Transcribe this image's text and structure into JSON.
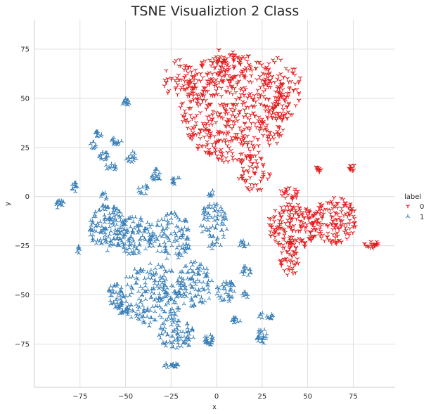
{
  "chart_data": {
    "type": "scatter",
    "title": "TSNE Visualiztion 2 Class",
    "xlabel": "x",
    "ylabel": "y",
    "xlim": [
      -100,
      98
    ],
    "ylim": [
      -97,
      90
    ],
    "xticks": [
      -75,
      -50,
      -25,
      0,
      25,
      50,
      75
    ],
    "yticks": [
      -75,
      -50,
      -25,
      0,
      25,
      50,
      75
    ],
    "xtick_labels": [
      "−75",
      "−50",
      "−25",
      "0",
      "25",
      "50",
      "75"
    ],
    "ytick_labels": [
      "−75",
      "−50",
      "−25",
      "0",
      "25",
      "50",
      "75"
    ],
    "grid": true,
    "legend": {
      "title": "label",
      "placement": "right",
      "entries": [
        "0",
        "1"
      ]
    },
    "series": [
      {
        "name": "0",
        "color": "#e41a1c",
        "marker": "tri_down",
        "clusters": [
          {
            "cx": 10,
            "cy": 45,
            "rx": 30,
            "ry": 28,
            "n": 560
          },
          {
            "cx": -20,
            "cy": 60,
            "rx": 10,
            "ry": 10,
            "n": 60
          },
          {
            "cx": 35,
            "cy": 55,
            "rx": 12,
            "ry": 16,
            "n": 90
          },
          {
            "cx": 20,
            "cy": 12,
            "rx": 10,
            "ry": 10,
            "n": 60
          },
          {
            "cx": 3,
            "cy": 65,
            "rx": 12,
            "ry": 10,
            "n": 60
          },
          {
            "cx": 42,
            "cy": -15,
            "rx": 14,
            "ry": 12,
            "n": 180
          },
          {
            "cx": 65,
            "cy": -12,
            "rx": 12,
            "ry": 12,
            "n": 150
          },
          {
            "cx": 40,
            "cy": -32,
            "rx": 5,
            "ry": 9,
            "n": 50
          },
          {
            "cx": 85,
            "cy": -24,
            "rx": 4,
            "ry": 2.5,
            "n": 25
          },
          {
            "cx": 56,
            "cy": 14,
            "rx": 2,
            "ry": 2,
            "n": 12
          },
          {
            "cx": 74,
            "cy": 15,
            "rx": 2,
            "ry": 2,
            "n": 12
          },
          {
            "cx": 40,
            "cy": 2,
            "rx": 5,
            "ry": 4,
            "n": 25
          }
        ]
      },
      {
        "name": "1",
        "color": "#377eb8",
        "marker": "tri_up",
        "clusters": [
          {
            "cx": -50,
            "cy": 48,
            "rx": 2,
            "ry": 2,
            "n": 15
          },
          {
            "cx": -65,
            "cy": 32,
            "rx": 2,
            "ry": 2,
            "n": 12
          },
          {
            "cx": -68,
            "cy": 26,
            "rx": 2,
            "ry": 2,
            "n": 8
          },
          {
            "cx": -55,
            "cy": 28,
            "rx": 4,
            "ry": 2,
            "n": 15
          },
          {
            "cx": -62,
            "cy": 20,
            "rx": 3,
            "ry": 3,
            "n": 15
          },
          {
            "cx": -58,
            "cy": 15,
            "rx": 3,
            "ry": 2,
            "n": 12
          },
          {
            "cx": -47,
            "cy": 20,
            "rx": 3,
            "ry": 3,
            "n": 15
          },
          {
            "cx": -33,
            "cy": 11,
            "rx": 3,
            "ry": 3,
            "n": 20
          },
          {
            "cx": -22,
            "cy": 8,
            "rx": 3,
            "ry": 2,
            "n": 12
          },
          {
            "cx": -78,
            "cy": 5,
            "rx": 2,
            "ry": 3,
            "n": 12
          },
          {
            "cx": -86,
            "cy": -4,
            "rx": 2.5,
            "ry": 3,
            "n": 15
          },
          {
            "cx": -40,
            "cy": 4,
            "rx": 3,
            "ry": 3,
            "n": 12
          },
          {
            "cx": -62,
            "cy": 0,
            "rx": 2,
            "ry": 2,
            "n": 8
          },
          {
            "cx": -60,
            "cy": -16,
            "rx": 10,
            "ry": 12,
            "n": 140
          },
          {
            "cx": -75,
            "cy": -27,
            "rx": 2,
            "ry": 2,
            "n": 8
          },
          {
            "cx": -45,
            "cy": -20,
            "rx": 10,
            "ry": 10,
            "n": 110
          },
          {
            "cx": -25,
            "cy": -20,
            "rx": 12,
            "ry": 12,
            "n": 120
          },
          {
            "cx": -2,
            "cy": -15,
            "rx": 8,
            "ry": 12,
            "n": 80
          },
          {
            "cx": -35,
            "cy": -50,
            "rx": 18,
            "ry": 16,
            "n": 220
          },
          {
            "cx": -12,
            "cy": -45,
            "rx": 10,
            "ry": 12,
            "n": 100
          },
          {
            "cx": -55,
            "cy": -50,
            "rx": 5,
            "ry": 6,
            "n": 40
          },
          {
            "cx": -22,
            "cy": -70,
            "rx": 10,
            "ry": 8,
            "n": 80
          },
          {
            "cx": 5,
            "cy": -48,
            "rx": 5,
            "ry": 6,
            "n": 40
          },
          {
            "cx": 10,
            "cy": -63,
            "rx": 3,
            "ry": 2,
            "n": 15
          },
          {
            "cx": 25,
            "cy": -71,
            "rx": 3,
            "ry": 4,
            "n": 25
          },
          {
            "cx": 27,
            "cy": -61,
            "rx": 4,
            "ry": 2,
            "n": 15
          },
          {
            "cx": 16,
            "cy": -38,
            "rx": 3,
            "ry": 3,
            "n": 15
          },
          {
            "cx": 15,
            "cy": -24,
            "rx": 3,
            "ry": 2,
            "n": 12
          },
          {
            "cx": 16,
            "cy": -50,
            "rx": 2,
            "ry": 2,
            "n": 8
          },
          {
            "cx": -4,
            "cy": -73,
            "rx": 3,
            "ry": 3,
            "n": 25
          },
          {
            "cx": -25,
            "cy": -86,
            "rx": 4,
            "ry": 1.5,
            "n": 20
          },
          {
            "cx": -52,
            "cy": -57,
            "rx": 4,
            "ry": 3,
            "n": 25
          },
          {
            "cx": -3,
            "cy": 2,
            "rx": 2,
            "ry": 2,
            "n": 8
          }
        ]
      }
    ]
  }
}
